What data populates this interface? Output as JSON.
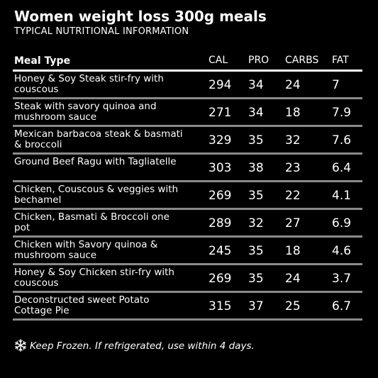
{
  "title": "Women weight loss 300g meals",
  "subtitle": "TYPICAL NUTRITIONAL INFORMATION",
  "table": {
    "headers": {
      "meal": "Meal Type",
      "cal": "CAL",
      "pro": "PRO",
      "carbs": "CARBS",
      "fat": "FAT"
    },
    "rows": [
      {
        "meal": "Honey & Soy Steak stir-fry with couscous",
        "cal": "294",
        "pro": "34",
        "carbs": "24",
        "fat": "7"
      },
      {
        "meal": "Steak with savory quinoa and mushroom sauce",
        "cal": "271",
        "pro": "34",
        "carbs": "18",
        "fat": "7.9"
      },
      {
        "meal": "Mexican barbacoa steak & basmati & broccoli",
        "cal": "329",
        "pro": "35",
        "carbs": "32",
        "fat": "7.6"
      },
      {
        "meal": "Ground Beef Ragu with Tagliatelle",
        "cal": "303",
        "pro": "38",
        "carbs": "23",
        "fat": "6.4"
      },
      {
        "meal": "Chicken, Couscous & veggies with bechamel",
        "cal": "269",
        "pro": "35",
        "carbs": "22",
        "fat": "4.1"
      },
      {
        "meal": "Chicken, Basmati & Broccoli one pot",
        "cal": "289",
        "pro": "32",
        "carbs": "27",
        "fat": "6.9"
      },
      {
        "meal": "Chicken with Savory quinoa & mushroom sauce",
        "cal": "245",
        "pro": "35",
        "carbs": "18",
        "fat": "4.6"
      },
      {
        "meal": "Honey & Soy Chicken stir-fry with couscous",
        "cal": "269",
        "pro": "35",
        "carbs": "24",
        "fat": "3.7"
      },
      {
        "meal": "Deconstructed sweet Potato Cottage Pie",
        "cal": "315",
        "pro": "37",
        "carbs": "25",
        "fat": "6.7"
      }
    ]
  },
  "footer": {
    "icon": "snowflake-icon",
    "text": "Keep Frozen. If refrigerated, use within 4 days."
  },
  "colors": {
    "background": "#000000",
    "text": "#ffffff",
    "row_divider": "#8a8a8a"
  }
}
